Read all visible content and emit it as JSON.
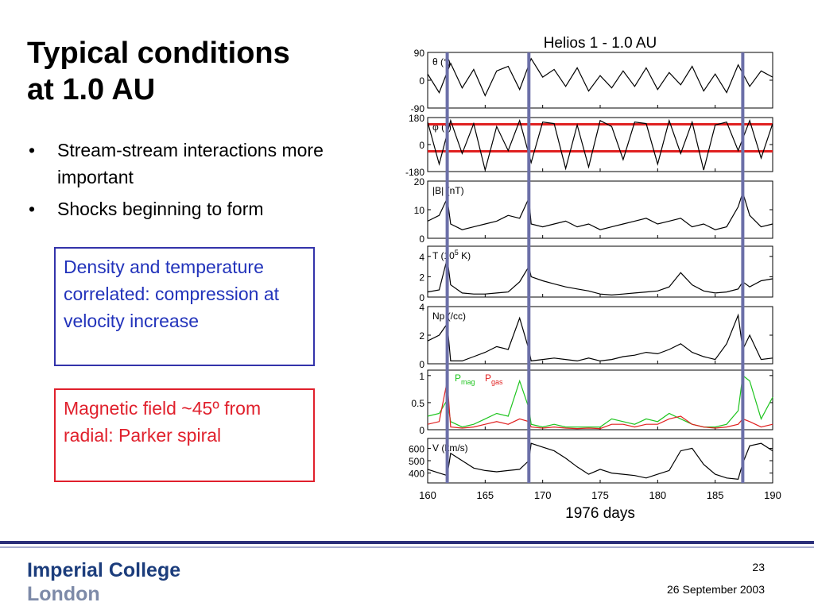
{
  "slide": {
    "title_line1": "Typical conditions",
    "title_line2": "at 1.0 AU",
    "bullets": [
      "Stream-stream interactions more important",
      "Shocks beginning to form"
    ],
    "blue_box": "Density and temperature correlated: compression at velocity increase",
    "red_box": "Magnetic field ~45º from radial: Parker spiral",
    "footer": {
      "logo_line1": "Imperial College",
      "logo_line2": "London",
      "page_number": "23",
      "date": "26 September 2003"
    },
    "colors": {
      "blue_box": "#2233bb",
      "red_box": "#e0202c",
      "footer_bar": "#2b2f7a",
      "marker_lines": "#6b6fa8",
      "pmag": "#1ec41e",
      "pgas": "#e02020"
    }
  },
  "chart_data": {
    "type": "line",
    "title": "Helios 1 - 1.0 AU",
    "xlabel": "1976 days",
    "xlim": [
      160,
      190
    ],
    "xticks": [
      160,
      165,
      170,
      175,
      180,
      185,
      190
    ],
    "shared_x": true,
    "vertical_markers_day": [
      161.7,
      168.8,
      187.4
    ],
    "panels": [
      {
        "label": "θ (°)",
        "ylim": [
          -90,
          90
        ],
        "yticks": [
          90,
          0,
          -90
        ],
        "series": [
          {
            "x": [
              160,
              161,
              162,
              163,
              164,
              165,
              166,
              167,
              168,
              169,
              170,
              171,
              172,
              173,
              174,
              175,
              176,
              177,
              178,
              179,
              180,
              181,
              182,
              183,
              184,
              185,
              186,
              187,
              188,
              189,
              190
            ],
            "y": [
              20,
              -40,
              55,
              -25,
              35,
              -50,
              30,
              45,
              -30,
              70,
              10,
              35,
              -20,
              40,
              -35,
              15,
              -25,
              30,
              -20,
              40,
              -30,
              25,
              -15,
              45,
              -35,
              20,
              -40,
              50,
              -20,
              30,
              10
            ]
          }
        ]
      },
      {
        "label": "φ (°)",
        "ylim": [
          -180,
          180
        ],
        "yticks": [
          180,
          0,
          -180
        ],
        "reference_lines": [
          135,
          -45
        ],
        "series": [
          {
            "x": [
              160,
              161,
              162,
              163,
              164,
              165,
              166,
              167,
              168,
              169,
              170,
              171,
              172,
              173,
              174,
              175,
              176,
              177,
              178,
              179,
              180,
              181,
              182,
              183,
              184,
              185,
              186,
              187,
              188,
              189,
              190
            ],
            "y": [
              150,
              -130,
              160,
              -60,
              140,
              -170,
              120,
              -40,
              160,
              -120,
              150,
              140,
              -160,
              130,
              -150,
              160,
              120,
              -100,
              150,
              140,
              -130,
              160,
              -60,
              150,
              -170,
              130,
              150,
              -40,
              160,
              -90,
              140
            ]
          }
        ]
      },
      {
        "label": "|B| (nT)",
        "ylim": [
          0,
          20
        ],
        "yticks": [
          20,
          10,
          0
        ],
        "series": [
          {
            "x": [
              160,
              161,
              161.7,
              162,
              163,
              164,
              165,
              166,
              167,
              168,
              168.8,
              169,
              170,
              171,
              172,
              173,
              174,
              175,
              176,
              177,
              178,
              179,
              180,
              181,
              182,
              183,
              184,
              185,
              186,
              187,
              187.4,
              188,
              189,
              190
            ],
            "y": [
              6,
              8,
              14,
              5,
              3,
              4,
              5,
              6,
              8,
              7,
              14,
              5,
              4,
              5,
              6,
              4,
              5,
              3,
              4,
              5,
              6,
              7,
              5,
              6,
              7,
              4,
              5,
              3,
              4,
              11,
              16,
              8,
              4,
              5
            ]
          }
        ]
      },
      {
        "label": "T (10^5 K)",
        "ylim": [
          0,
          5
        ],
        "yticks": [
          4,
          2,
          0
        ],
        "series": [
          {
            "x": [
              160,
              161,
              161.7,
              162,
              163,
              164,
              165,
              166,
              167,
              168,
              168.8,
              169,
              170,
              171,
              172,
              173,
              174,
              175,
              176,
              177,
              178,
              179,
              180,
              181,
              182,
              183,
              184,
              185,
              186,
              187,
              187.4,
              188,
              189,
              190
            ],
            "y": [
              0.5,
              0.7,
              3.8,
              1.2,
              0.4,
              0.3,
              0.3,
              0.4,
              0.5,
              1.5,
              3.0,
              2.0,
              1.6,
              1.3,
              1.0,
              0.8,
              0.6,
              0.3,
              0.2,
              0.3,
              0.4,
              0.5,
              0.6,
              1.0,
              2.4,
              1.2,
              0.6,
              0.4,
              0.5,
              0.8,
              1.5,
              1.0,
              1.6,
              1.8
            ]
          }
        ]
      },
      {
        "label": "Np (/cc)",
        "ylim": [
          0,
          4
        ],
        "yticks": [
          4,
          2,
          0
        ],
        "series": [
          {
            "x": [
              160,
              161,
              161.7,
              162,
              163,
              164,
              165,
              166,
              167,
              168,
              168.8,
              169,
              170,
              171,
              172,
              173,
              174,
              175,
              176,
              177,
              178,
              179,
              180,
              181,
              182,
              183,
              184,
              185,
              186,
              187,
              187.4,
              188,
              189,
              190
            ],
            "y": [
              1.6,
              2.0,
              2.8,
              0.2,
              0.2,
              0.5,
              0.8,
              1.2,
              1.0,
              3.2,
              1.0,
              0.2,
              0.3,
              0.4,
              0.3,
              0.2,
              0.4,
              0.2,
              0.3,
              0.5,
              0.6,
              0.8,
              0.7,
              1.0,
              1.4,
              0.8,
              0.5,
              0.3,
              1.4,
              3.4,
              1.0,
              2.0,
              0.3,
              0.4
            ]
          }
        ]
      },
      {
        "label": "",
        "ylim": [
          0,
          1.1
        ],
        "yticks": [
          1,
          0.5,
          0
        ],
        "legend": [
          "Pmag",
          "Pgas"
        ],
        "series": [
          {
            "name": "Pmag",
            "color": "#1ec41e",
            "x": [
              160,
              161,
              161.7,
              162,
              163,
              164,
              165,
              166,
              167,
              168,
              168.8,
              169,
              170,
              171,
              172,
              173,
              174,
              175,
              176,
              177,
              178,
              179,
              180,
              181,
              182,
              183,
              184,
              185,
              186,
              187,
              187.4,
              188,
              189,
              190
            ],
            "y": [
              0.25,
              0.3,
              0.55,
              0.15,
              0.05,
              0.1,
              0.2,
              0.3,
              0.25,
              0.9,
              0.4,
              0.1,
              0.05,
              0.1,
              0.05,
              0.05,
              0.05,
              0.05,
              0.2,
              0.15,
              0.1,
              0.2,
              0.15,
              0.3,
              0.2,
              0.1,
              0.05,
              0.05,
              0.1,
              0.35,
              1.0,
              0.9,
              0.2,
              0.6
            ]
          },
          {
            "name": "Pgas",
            "color": "#e02020",
            "x": [
              160,
              161,
              161.7,
              162,
              163,
              164,
              165,
              166,
              167,
              168,
              168.8,
              169,
              170,
              171,
              172,
              173,
              174,
              175,
              176,
              177,
              178,
              179,
              180,
              181,
              182,
              183,
              184,
              185,
              186,
              187,
              187.4,
              188,
              189,
              190
            ],
            "y": [
              0.1,
              0.15,
              0.9,
              0.05,
              0.03,
              0.05,
              0.1,
              0.15,
              0.1,
              0.2,
              0.15,
              0.05,
              0.03,
              0.05,
              0.03,
              0.02,
              0.03,
              0.02,
              0.1,
              0.1,
              0.05,
              0.1,
              0.1,
              0.2,
              0.25,
              0.1,
              0.05,
              0.03,
              0.05,
              0.1,
              0.2,
              0.15,
              0.05,
              0.1
            ]
          }
        ]
      },
      {
        "label": "V (km/s)",
        "ylim": [
          320,
          680
        ],
        "yticks": [
          600,
          500,
          400
        ],
        "series": [
          {
            "x": [
              160,
              161,
              161.7,
              162,
              163,
              164,
              165,
              166,
              167,
              168,
              168.8,
              169,
              170,
              171,
              172,
              173,
              174,
              175,
              176,
              177,
              178,
              179,
              180,
              181,
              182,
              183,
              184,
              185,
              186,
              187,
              187.4,
              188,
              189,
              190
            ],
            "y": [
              430,
              400,
              380,
              560,
              500,
              440,
              420,
              410,
              420,
              430,
              500,
              640,
              610,
              580,
              520,
              450,
              390,
              430,
              400,
              390,
              380,
              360,
              390,
              420,
              580,
              600,
              470,
              390,
              360,
              350,
              480,
              620,
              640,
              580
            ]
          }
        ]
      }
    ]
  }
}
